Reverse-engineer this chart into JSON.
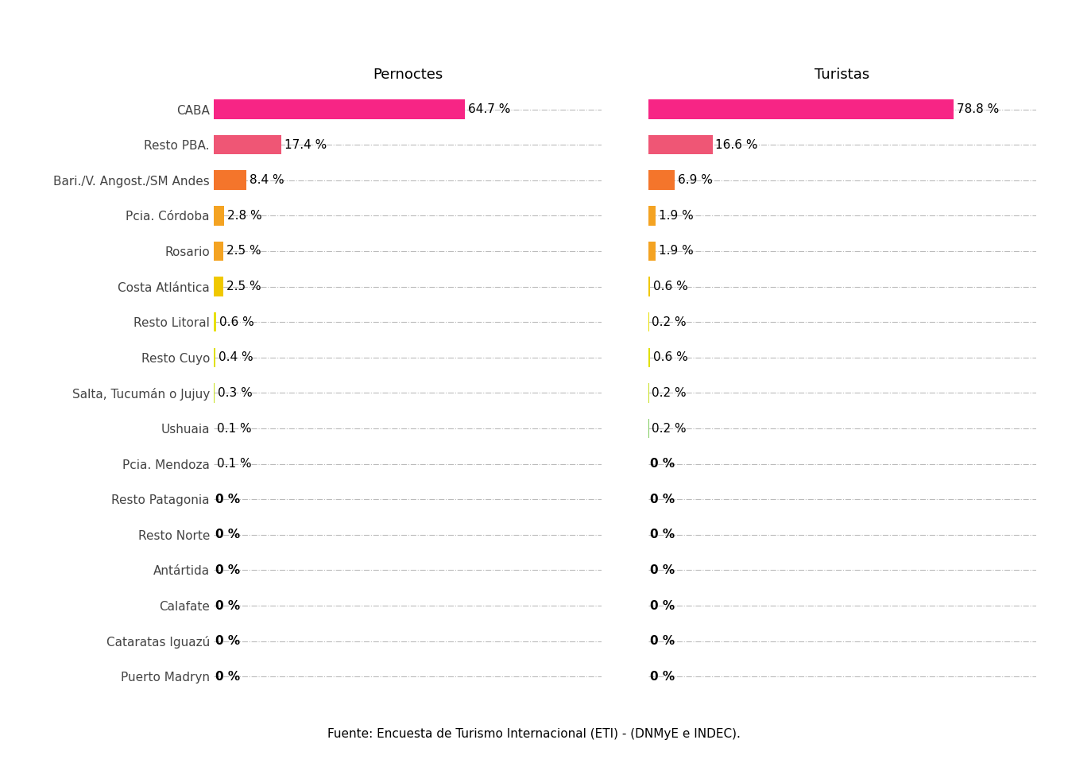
{
  "categories": [
    "CABA",
    "Resto PBA.",
    "Bari./V. Angost./SM Andes",
    "Pcia. Córdoba",
    "Rosario",
    "Costa Atlántica",
    "Resto Litoral",
    "Resto Cuyo",
    "Salta, Tucumán o Jujuy",
    "Ushuaia",
    "Pcia. Mendoza",
    "Resto Patagonia",
    "Resto Norte",
    "Antártida",
    "Calafate",
    "Cataratas Iguazú",
    "Puerto Madryn"
  ],
  "pernoctes": [
    64.7,
    17.4,
    8.4,
    2.8,
    2.5,
    2.5,
    0.6,
    0.4,
    0.3,
    0.1,
    0.1,
    0.0,
    0.0,
    0.0,
    0.0,
    0.0,
    0.0
  ],
  "turistas": [
    78.8,
    16.6,
    6.9,
    1.9,
    1.9,
    0.6,
    0.2,
    0.6,
    0.2,
    0.2,
    0.0,
    0.0,
    0.0,
    0.0,
    0.0,
    0.0,
    0.0
  ],
  "pernoctes_labels": [
    "64.7 %",
    "17.4 %",
    "8.4 %",
    "2.8 %",
    "2.5 %",
    "2.5 %",
    "0.6 %",
    "0.4 %",
    "0.3 %",
    "0.1 %",
    "0.1 %",
    "0 %",
    "0 %",
    "0 %",
    "0 %",
    "0 %",
    "0 %"
  ],
  "turistas_labels": [
    "78.8 %",
    "16.6 %",
    "6.9 %",
    "1.9 %",
    "1.9 %",
    "0.6 %",
    "0.2 %",
    "0.6 %",
    "0.2 %",
    "0.2 %",
    "0 %",
    "0 %",
    "0 %",
    "0 %",
    "0 %",
    "0 %",
    "0 %"
  ],
  "pernoctes_colors": [
    "#F72585",
    "#EF5675",
    "#F4752B",
    "#F4A322",
    "#F4A322",
    "#F0C800",
    "#E8E000",
    "#E0E000",
    "#C8E020",
    "#80CC60",
    "#40C080",
    "#C0C0C0",
    "#C0C0C0",
    "#C0C0C0",
    "#C0C0C0",
    "#C0C0C0",
    "#C0C0C0"
  ],
  "turistas_colors": [
    "#F72585",
    "#EF5675",
    "#F4752B",
    "#F4A322",
    "#F4A322",
    "#F0C800",
    "#E8E000",
    "#E0E000",
    "#C8E020",
    "#80CC60",
    "#C0C0C0",
    "#C0C0C0",
    "#C0C0C0",
    "#C0C0C0",
    "#C0C0C0",
    "#C0C0C0",
    "#C0C0C0"
  ],
  "pernoctes_title": "Pernoctes",
  "turistas_title": "Turistas",
  "background_color": "#FFFFFF",
  "grid_color": "#AAAAAA",
  "footer": "Fuente: Encuesta de Turismo Internacional (ETI) - (DNMyE e INDEC).",
  "label_fontsize": 11,
  "tick_fontsize": 11,
  "title_fontsize": 13
}
